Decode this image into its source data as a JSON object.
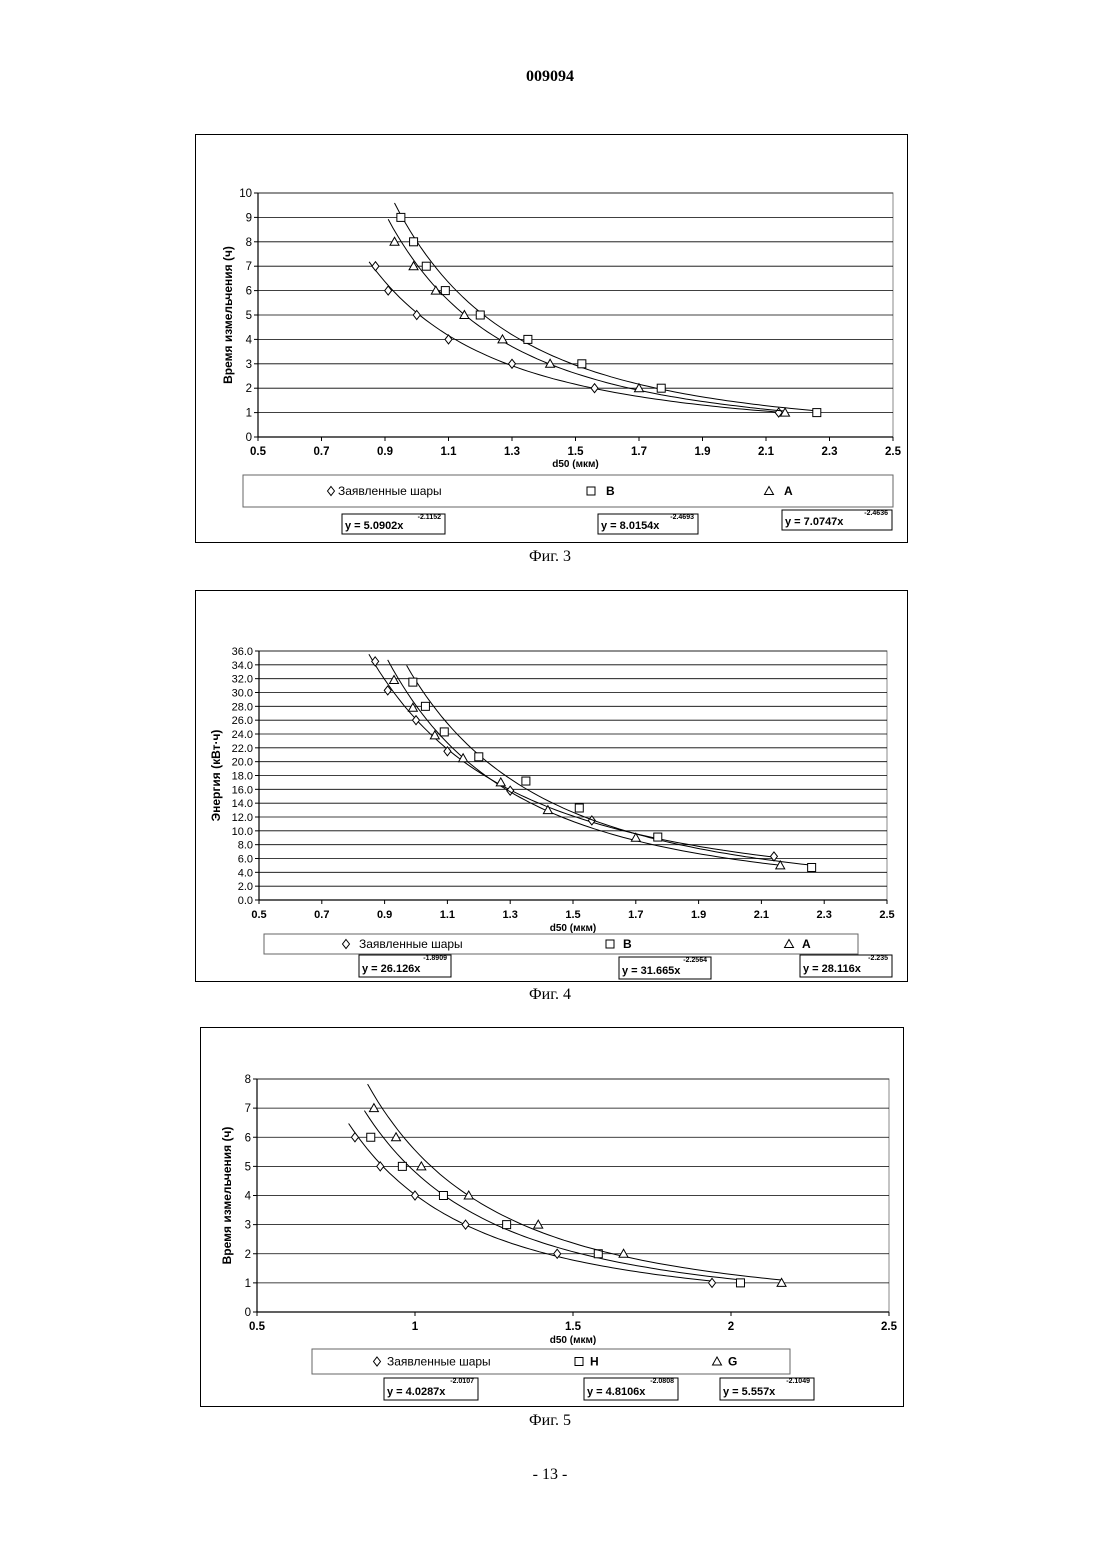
{
  "document": {
    "number": "009094",
    "page": "- 13 -"
  },
  "chart_data": [
    {
      "type": "scatter",
      "caption": "Фиг. 3",
      "xlabel": "d50 (мкм)",
      "ylabel": "Время измельчения (ч)",
      "xlim": [
        0.5,
        2.5
      ],
      "ylim": [
        0,
        10
      ],
      "xticks": [
        "0.5",
        "0.7",
        "0.9",
        "1.1",
        "1.3",
        "1.5",
        "1.7",
        "1.9",
        "2.1",
        "2.3",
        "2.5"
      ],
      "yticks": [
        "0",
        "1",
        "2",
        "3",
        "4",
        "5",
        "6",
        "7",
        "8",
        "9",
        "10"
      ],
      "grid": "horizontal",
      "legend": "bottom",
      "series": [
        {
          "name": "Заявленные шары",
          "marker": "diamond",
          "trendline": "y = 5.0902x",
          "trend_exp": "-2.1152",
          "x": [
            0.87,
            0.91,
            1.0,
            1.1,
            1.3,
            1.56,
            2.14
          ],
          "y": [
            7,
            6,
            5,
            4,
            3,
            2,
            1
          ]
        },
        {
          "name": "B",
          "marker": "square",
          "trendline": "y = 8.0154x",
          "trend_exp": "-2.4693",
          "x": [
            0.95,
            0.99,
            1.03,
            1.09,
            1.2,
            1.35,
            1.52,
            1.77,
            2.26
          ],
          "y": [
            9,
            8,
            7,
            6,
            5,
            4,
            3,
            2,
            1
          ]
        },
        {
          "name": "A",
          "marker": "triangle",
          "trendline": "y = 7.0747x",
          "trend_exp": "-2.4636",
          "x": [
            0.93,
            0.99,
            1.06,
            1.15,
            1.27,
            1.42,
            1.7,
            2.16
          ],
          "y": [
            8,
            7,
            6,
            5,
            4,
            3,
            2,
            1
          ]
        }
      ]
    },
    {
      "type": "scatter",
      "caption": "Фиг. 4",
      "xlabel": "d50 (мкм)",
      "ylabel": "Энергия (кВт·ч)",
      "xlim": [
        0.5,
        2.5
      ],
      "ylim": [
        0,
        36
      ],
      "xticks": [
        "0.5",
        "0.7",
        "0.9",
        "1.1",
        "1.3",
        "1.5",
        "1.7",
        "1.9",
        "2.1",
        "2.3",
        "2.5"
      ],
      "yticks": [
        "0.0",
        "2.0",
        "4.0",
        "6.0",
        "8.0",
        "10.0",
        "12.0",
        "14.0",
        "16.0",
        "18.0",
        "20.0",
        "22.0",
        "24.0",
        "26.0",
        "28.0",
        "30.0",
        "32.0",
        "34.0",
        "36.0"
      ],
      "grid": "horizontal",
      "legend": "bottom",
      "series": [
        {
          "name": "Заявленные шары",
          "marker": "diamond",
          "trendline": "y = 26.126x",
          "trend_exp": "-1.8909",
          "x": [
            0.87,
            0.91,
            1.0,
            1.1,
            1.3,
            1.56,
            2.14
          ],
          "y": [
            34.5,
            30.3,
            26.0,
            21.5,
            15.8,
            11.5,
            6.3
          ]
        },
        {
          "name": "B",
          "marker": "square",
          "trendline": "y = 31.665x",
          "trend_exp": "-2.2564",
          "x": [
            0.99,
            1.03,
            1.09,
            1.2,
            1.35,
            1.52,
            1.77,
            2.26
          ],
          "y": [
            31.5,
            28.0,
            24.3,
            20.7,
            17.2,
            13.3,
            9.1,
            4.7
          ]
        },
        {
          "name": "A",
          "marker": "triangle",
          "trendline": "y = 28.116x",
          "trend_exp": "-2.235",
          "x": [
            0.93,
            0.99,
            1.06,
            1.15,
            1.27,
            1.42,
            1.7,
            2.16
          ],
          "y": [
            31.8,
            27.8,
            23.8,
            20.5,
            17.0,
            13.0,
            9.0,
            5.0
          ]
        }
      ]
    },
    {
      "type": "scatter",
      "caption": "Фиг. 5",
      "xlabel": "d50 (мкм)",
      "ylabel": "Время измельчения (ч)",
      "xlim": [
        0.5,
        2.5
      ],
      "ylim": [
        0,
        8
      ],
      "xticks": [
        "0.5",
        "1",
        "1.5",
        "2",
        "2.5"
      ],
      "yticks": [
        "0",
        "1",
        "2",
        "3",
        "4",
        "5",
        "6",
        "7",
        "8"
      ],
      "grid": "horizontal",
      "legend": "bottom",
      "series": [
        {
          "name": "Заявленные шары",
          "marker": "diamond",
          "trendline": "y = 4.0287x",
          "trend_exp": "-2.0107",
          "x": [
            0.81,
            0.89,
            1.0,
            1.16,
            1.45,
            1.94
          ],
          "y": [
            6,
            5,
            4,
            3,
            2,
            1
          ]
        },
        {
          "name": "H",
          "marker": "square",
          "trendline": "y = 4.8106x",
          "trend_exp": "-2.0808",
          "x": [
            0.86,
            0.96,
            1.09,
            1.29,
            1.58,
            2.03
          ],
          "y": [
            6,
            5,
            4,
            3,
            2,
            1
          ]
        },
        {
          "name": "G",
          "marker": "triangle",
          "trendline": "y = 5.557x",
          "trend_exp": "-2.1049",
          "x": [
            0.87,
            0.94,
            1.02,
            1.17,
            1.39,
            1.66,
            2.16
          ],
          "y": [
            7,
            6,
            5,
            4,
            3,
            2,
            1
          ]
        }
      ]
    }
  ]
}
